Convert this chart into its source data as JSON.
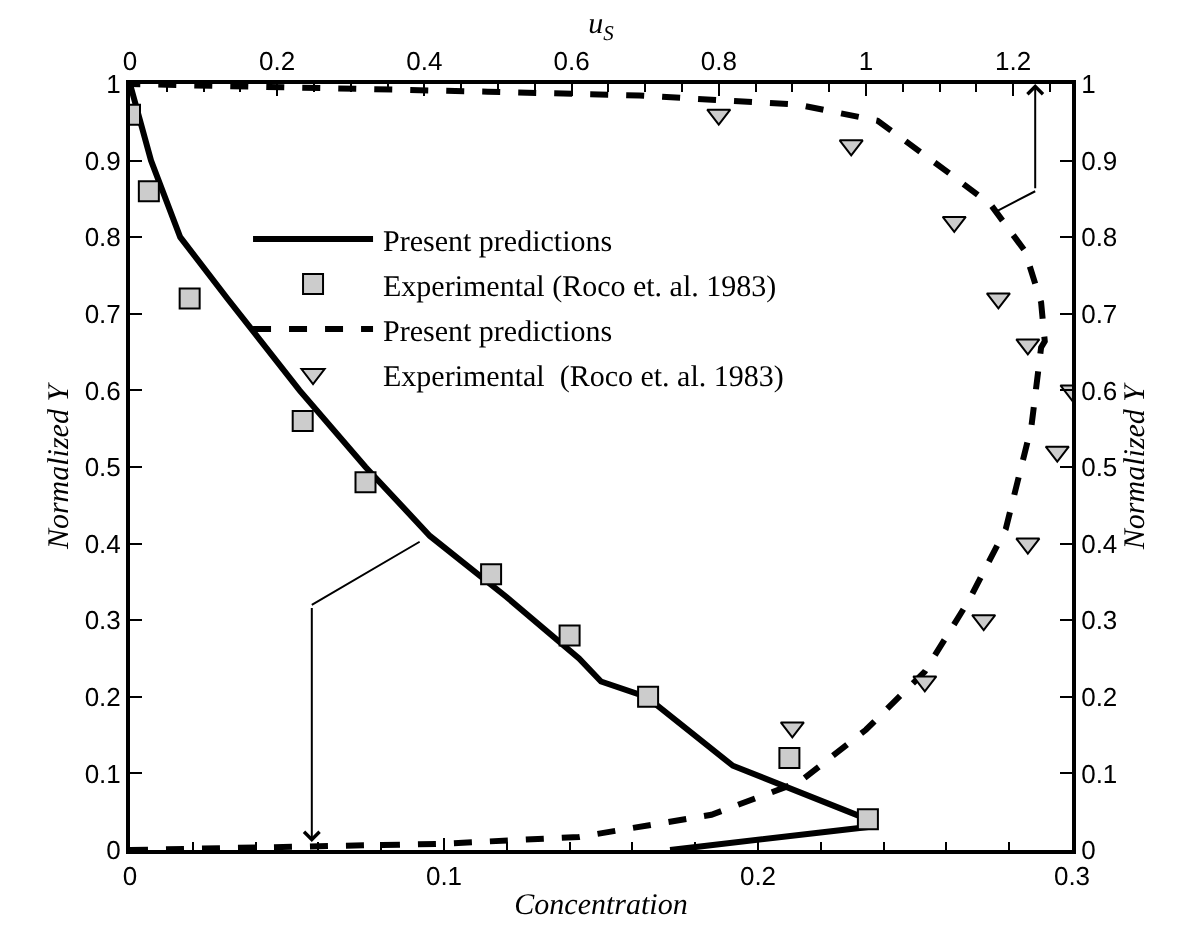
{
  "chart_data": {
    "type": "line",
    "xlabel": "Concentration",
    "ylabel": "Normalized Y",
    "y2label": "Normalized Y",
    "x2label": "u$_{S}$",
    "xlim": [
      0,
      0.3
    ],
    "xticks": [
      0,
      0.1,
      0.2,
      0.3
    ],
    "x2lim": [
      0,
      1.28
    ],
    "x2ticks": [
      0,
      0.2,
      0.4,
      0.6,
      0.8,
      1,
      1.2
    ],
    "ylim": [
      0,
      1
    ],
    "yticks": [
      0,
      0.1,
      0.2,
      0.3,
      0.4,
      0.5,
      0.6,
      0.7,
      0.8,
      0.9,
      1
    ],
    "y2lim": [
      0,
      1
    ],
    "y2ticks": [
      0,
      0.1,
      0.2,
      0.3,
      0.4,
      0.5,
      0.6,
      0.7,
      0.8,
      0.9,
      1
    ],
    "legend": "top",
    "series": [
      {
        "name": "Present predictions",
        "type": "line",
        "line_style": "solid",
        "marker": "none",
        "color": "#000000",
        "x": [
          0,
          0.0067,
          0.016,
          0.031,
          0.054,
          0.075,
          0.0955,
          0.12,
          0.143,
          0.15,
          0.1645,
          0.192,
          0.235,
          0.235,
          0.172
        ],
        "values": [
          1,
          0.9,
          0.8,
          0.72,
          0.6,
          0.5,
          0.41,
          0.33,
          0.25,
          0.22,
          0.2,
          0.11,
          0.04,
          0.03,
          0
        ]
      },
      {
        "name": "Experimental (Roco et. al. 1983)",
        "type": "scatter",
        "marker": "square",
        "color": "#cccccc",
        "x": [
          0,
          0.006,
          0.019,
          0.055,
          0.075,
          0.115,
          0.14,
          0.165,
          0.21,
          0.235
        ],
        "values": [
          0.96,
          0.86,
          0.72,
          0.56,
          0.48,
          0.36,
          0.28,
          0.2,
          0.12,
          0.04
        ]
      },
      {
        "name": "Present predictions",
        "type": "line",
        "line_style": "dashed",
        "marker": "none",
        "axis": "x2",
        "color": "#000000",
        "x": [
          0,
          0.42,
          0.61,
          0.79,
          0.91,
          1.0,
          1.08,
          1.14,
          1.19,
          1.225,
          1.238,
          1.243,
          1.238,
          1.216,
          1.17,
          1.107,
          1.016,
          0.908,
          0.692,
          0.486,
          0
        ],
        "values": [
          0,
          0.008,
          0.017,
          0.046,
          0.089,
          0.157,
          0.233,
          0.326,
          0.419,
          0.554,
          0.656,
          0.664,
          0.715,
          0.782,
          0.842,
          0.888,
          0.952,
          0.973,
          0.985,
          0.99,
          1
        ]
      },
      {
        "name": "Experimental  (Roco et. al. 1983)",
        "type": "scatter",
        "marker": "triangle",
        "axis": "x2",
        "color": "#cccccc",
        "x": [
          0.8,
          0.98,
          1.12,
          1.18,
          1.22,
          1.28,
          1.26,
          1.22,
          1.16,
          1.08,
          0.9
        ],
        "values": [
          0.96,
          0.92,
          0.82,
          0.72,
          0.66,
          0.6,
          0.52,
          0.4,
          0.3,
          0.22,
          0.16
        ]
      }
    ]
  }
}
